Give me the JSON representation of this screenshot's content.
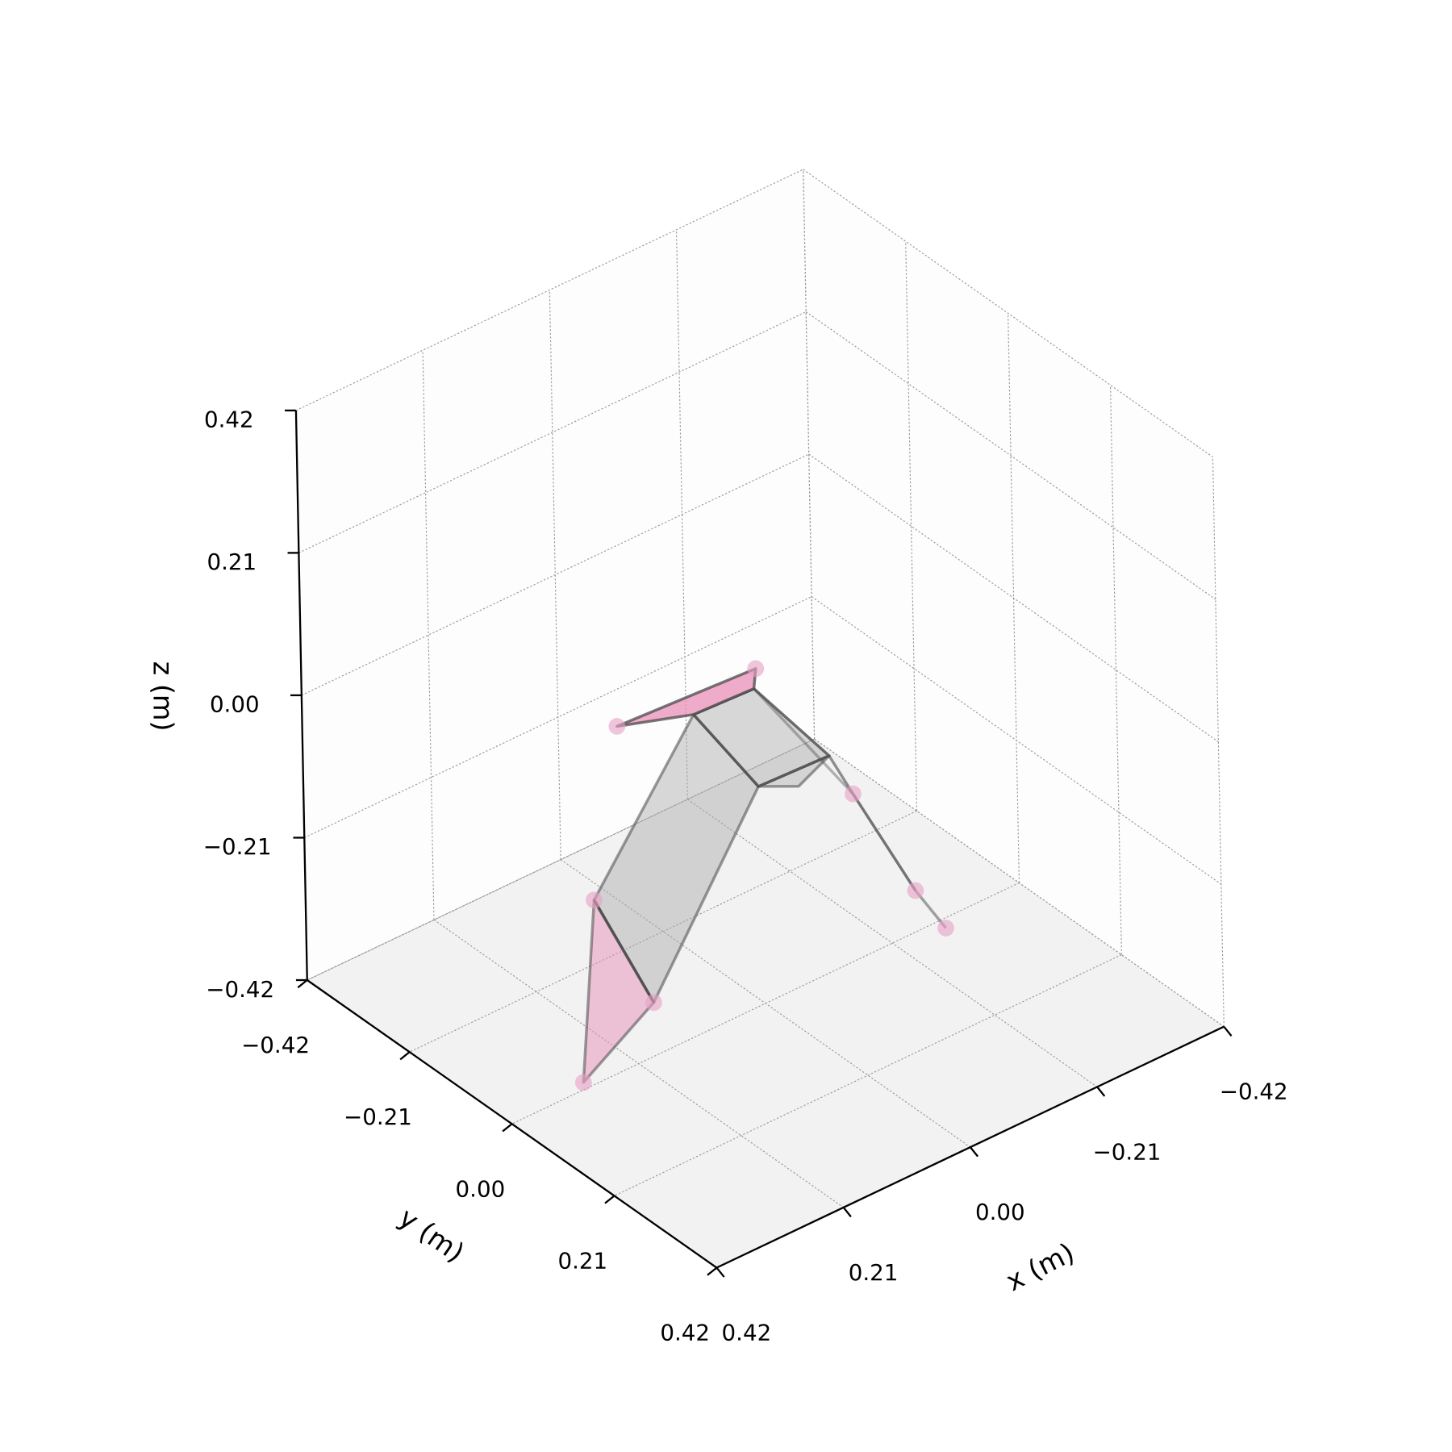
{
  "chart_data": {
    "type": "3d",
    "xlabel": "x (m)",
    "ylabel": "y (m)",
    "zlabel": "z (m)",
    "xlim": [
      -0.42,
      0.42
    ],
    "ylim": [
      -0.42,
      0.42
    ],
    "zlim": [
      -0.42,
      0.42
    ],
    "xticks": [
      "−0.42",
      "−0.21",
      "0.00",
      "0.21",
      "0.42"
    ],
    "yticks": [
      "−0.42",
      "−0.21",
      "0.00",
      "0.21",
      "0.42"
    ],
    "zticks": [
      "−0.42",
      "−0.21",
      "0.00",
      "0.21",
      "0.42"
    ],
    "tick_values": [
      -0.42,
      -0.21,
      0.0,
      0.21,
      0.42
    ],
    "grid": true,
    "markers": [
      [
        0.171,
        -0.081,
        0.02
      ],
      [
        -0.019,
        -0.031,
        0.05
      ],
      [
        0.278,
        0.0,
        -0.15
      ],
      [
        0.222,
        0.049,
        -0.3
      ],
      [
        0.291,
        -0.013,
        -0.42
      ],
      [
        -0.08,
        0.089,
        -0.1
      ],
      [
        -0.222,
        0.035,
        -0.33
      ],
      [
        -0.284,
        0.018,
        -0.42
      ]
    ],
    "joints": {
      "B": [
        0.06,
        -0.062,
        0.0
      ],
      "D": [
        -0.036,
        -0.057,
        0.0
      ],
      "E": [
        -0.016,
        0.122,
        0.0
      ],
      "C": [
        0.097,
        0.117,
        0.0
      ],
      "F": [
        0.057,
        0.15,
        0.0
      ]
    },
    "colors": {
      "marker": "#e8a0c4",
      "pink_face": "#e890b8",
      "gray_face": "#a8a8a8",
      "edge": "#4a4a4a",
      "floor": "#f2f2f2",
      "wall": "#fdfdfd",
      "grid": "#9a9a9a"
    }
  }
}
